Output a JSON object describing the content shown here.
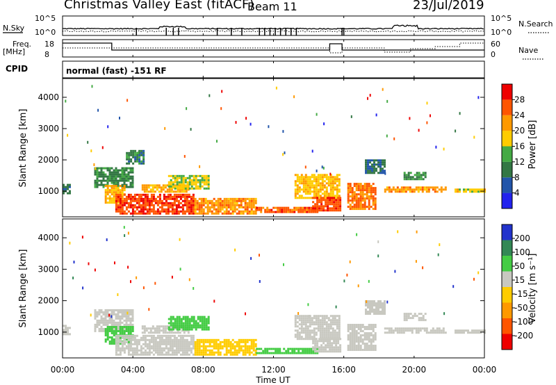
{
  "header": {
    "title": "Christmas Valley East (fitACF)",
    "beam": "Beam 11",
    "date": "23/Jul/2019"
  },
  "params": {
    "nsky_label": "N.Sky",
    "nsky_tick_top": "10^5",
    "nsky_tick_bottom": "10^0",
    "nsearch_label": "N.Search",
    "nsearch_tick_top": "10^5",
    "nsearch_tick_bottom": "10^0",
    "freq_label": "Freq.",
    "freq_unit": "[MHz]",
    "freq_tick_top": "18",
    "freq_tick_bottom": "8",
    "nave_label": "Nave",
    "nave_tick_top": "60",
    "nave_tick_bottom": "0",
    "cpid_label": "CPID",
    "cpid_text": "normal (fast) -151 RF"
  },
  "x_axis": {
    "label": "Time UT",
    "ticks": [
      "00:00",
      "04:00",
      "08:00",
      "12:00",
      "16:00",
      "20:00",
      "00:00"
    ]
  },
  "colors": {
    "power": [
      "#2222ee",
      "#2255aa",
      "#337744",
      "#44aa44",
      "#ffcc00",
      "#ff9900",
      "#ff5500",
      "#ee0000"
    ],
    "velocity": [
      "#ee0000",
      "#ff5500",
      "#ff9900",
      "#ffcc00",
      "#c8c8c0",
      "#44cc44",
      "#338855",
      "#2233cc"
    ]
  },
  "chart_data": [
    {
      "type": "heatmap",
      "panel": "power",
      "ylabel": "Slant Range [km]",
      "yticks": [
        1000,
        2000,
        3000,
        4000
      ],
      "ylim": [
        180,
        4600
      ],
      "xlim_hours": [
        0,
        24
      ],
      "colorbar_label": "Power [dB]",
      "colorbar_ticks": [
        "4",
        "8",
        "12",
        "16",
        "20",
        "24",
        "28"
      ],
      "clim": [
        0,
        32
      ],
      "regions": [
        {
          "t0": 0.0,
          "t1": 0.4,
          "r0": 900,
          "r1": 1200,
          "v": 9
        },
        {
          "t0": 1.8,
          "t1": 4.0,
          "r0": 1100,
          "r1": 1700,
          "v": 11
        },
        {
          "t0": 2.4,
          "t1": 3.5,
          "r0": 600,
          "r1": 1150,
          "v": 20
        },
        {
          "t0": 3.0,
          "t1": 7.5,
          "r0": 250,
          "r1": 900,
          "v": 27
        },
        {
          "t0": 3.6,
          "t1": 4.6,
          "r0": 1850,
          "r1": 2300,
          "v": 10
        },
        {
          "t0": 4.5,
          "t1": 7.2,
          "r0": 950,
          "r1": 1150,
          "v": 21
        },
        {
          "t0": 6.0,
          "t1": 8.3,
          "r0": 1050,
          "r1": 1450,
          "v": 17
        },
        {
          "t0": 7.5,
          "t1": 11.0,
          "r0": 250,
          "r1": 750,
          "v": 22
        },
        {
          "t0": 11.0,
          "t1": 14.5,
          "r0": 300,
          "r1": 480,
          "v": 26
        },
        {
          "t0": 13.2,
          "t1": 15.8,
          "r0": 750,
          "r1": 1500,
          "v": 19
        },
        {
          "t0": 14.2,
          "t1": 15.8,
          "r0": 350,
          "r1": 800,
          "v": 27
        },
        {
          "t0": 16.2,
          "t1": 17.8,
          "r0": 400,
          "r1": 1250,
          "v": 25
        },
        {
          "t0": 17.2,
          "t1": 18.3,
          "r0": 1550,
          "r1": 2000,
          "v": 9
        },
        {
          "t0": 18.3,
          "t1": 21.8,
          "r0": 950,
          "r1": 1100,
          "v": 22
        },
        {
          "t0": 19.4,
          "t1": 20.6,
          "r0": 1350,
          "r1": 1550,
          "v": 12
        },
        {
          "t0": 22.3,
          "t1": 24.0,
          "r0": 950,
          "r1": 1050,
          "v": 18
        }
      ]
    },
    {
      "type": "heatmap",
      "panel": "velocity",
      "ylabel": "Slant Range [km]",
      "yticks": [
        1000,
        2000,
        3000,
        4000
      ],
      "ylim": [
        180,
        4600
      ],
      "xlim_hours": [
        0,
        24
      ],
      "colorbar_label": "Velocity [m s⁻¹]",
      "colorbar_ticks": [
        "-200",
        "-100",
        "-50",
        "-15",
        "15",
        "50",
        "100",
        "200"
      ],
      "clim": [
        -250,
        250
      ],
      "regions": [
        {
          "t0": 0.0,
          "t1": 0.4,
          "r0": 900,
          "r1": 1200,
          "v": 0
        },
        {
          "t0": 1.8,
          "t1": 4.0,
          "r0": 1000,
          "r1": 1700,
          "v": 0
        },
        {
          "t0": 2.4,
          "t1": 4.0,
          "r0": 600,
          "r1": 1150,
          "v": 30
        },
        {
          "t0": 3.0,
          "t1": 7.5,
          "r0": 250,
          "r1": 900,
          "v": 0
        },
        {
          "t0": 4.5,
          "t1": 7.2,
          "r0": 950,
          "r1": 1150,
          "v": 0
        },
        {
          "t0": 6.0,
          "t1": 8.3,
          "r0": 1050,
          "r1": 1450,
          "v": 30
        },
        {
          "t0": 7.5,
          "t1": 11.0,
          "r0": 250,
          "r1": 750,
          "v": -30
        },
        {
          "t0": 11.0,
          "t1": 14.5,
          "r0": 300,
          "r1": 480,
          "v": 30
        },
        {
          "t0": 13.2,
          "t1": 15.8,
          "r0": 750,
          "r1": 1500,
          "v": 0
        },
        {
          "t0": 14.2,
          "t1": 15.8,
          "r0": 350,
          "r1": 800,
          "v": 0
        },
        {
          "t0": 16.2,
          "t1": 17.8,
          "r0": 400,
          "r1": 1250,
          "v": 0
        },
        {
          "t0": 17.2,
          "t1": 18.3,
          "r0": 1550,
          "r1": 2000,
          "v": 0
        },
        {
          "t0": 18.3,
          "t1": 21.8,
          "r0": 950,
          "r1": 1100,
          "v": 0
        },
        {
          "t0": 19.4,
          "t1": 20.6,
          "r0": 1350,
          "r1": 1550,
          "v": 0
        },
        {
          "t0": 22.3,
          "t1": 24.0,
          "r0": 950,
          "r1": 1050,
          "v": 0
        }
      ]
    }
  ]
}
